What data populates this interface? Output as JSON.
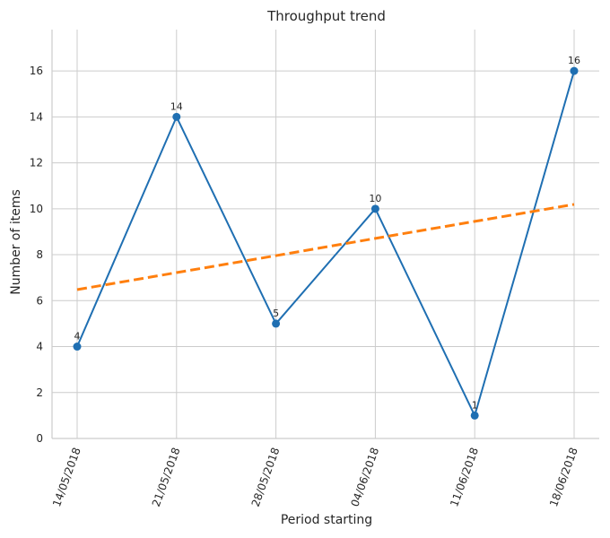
{
  "chart_data": {
    "type": "line",
    "title": "Throughput trend",
    "xlabel": "Period starting",
    "ylabel": "Number of items",
    "categories": [
      "14/05/2018",
      "21/05/2018",
      "28/05/2018",
      "04/06/2018",
      "11/06/2018",
      "18/06/2018"
    ],
    "series": [
      {
        "values": [
          4,
          14,
          5,
          10,
          1,
          16
        ],
        "color": "#1f6fb2",
        "style": "solid",
        "markers": true,
        "data_labels": [
          "4",
          "14",
          "5",
          "10",
          "1",
          "16"
        ]
      },
      {
        "values": [
          6.48,
          7.22,
          7.96,
          8.71,
          9.45,
          10.19
        ],
        "color": "#ff7f0e",
        "style": "dashed",
        "markers": false
      }
    ],
    "ylim": [
      0,
      17.8
    ],
    "yticks": [
      0,
      2,
      4,
      6,
      8,
      10,
      12,
      14,
      16
    ],
    "ytick_labels": [
      "0",
      "2",
      "4",
      "6",
      "8",
      "10",
      "12",
      "14",
      "16"
    ],
    "grid": true,
    "legend": "none",
    "xtick_rotation_deg": -70
  }
}
